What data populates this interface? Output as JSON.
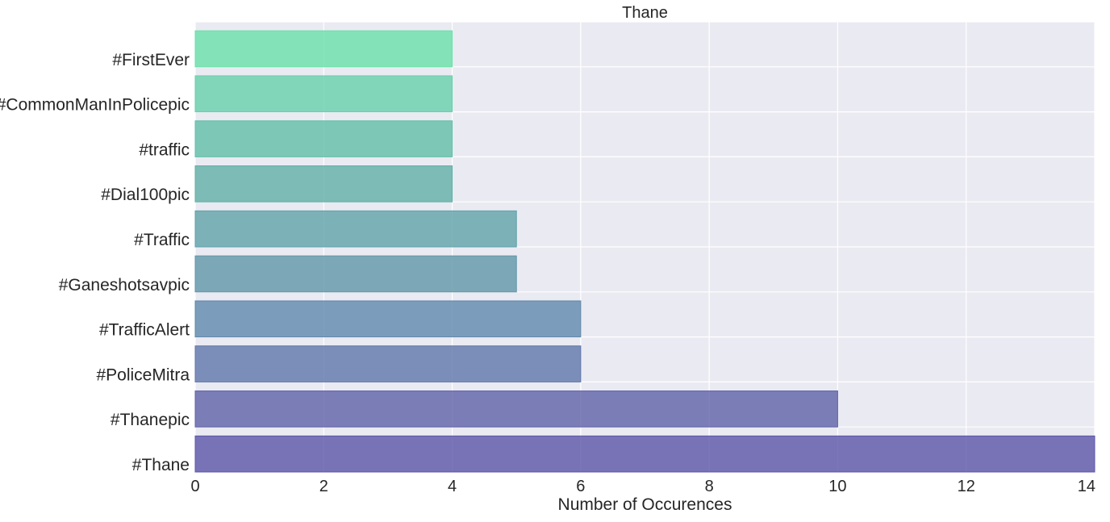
{
  "chart_data": {
    "type": "bar",
    "orientation": "horizontal",
    "title": "Thane",
    "xlabel": "Number of Occurences",
    "ylabel": "",
    "categories": [
      "#Thane",
      "#Thanepic",
      "#PoliceMitra",
      "#TrafficAlert",
      "#Ganeshotsavpic",
      "#Traffic",
      "#Dial100pic",
      "#traffic",
      "#CommonManInPolicepic",
      "#FirstEver"
    ],
    "values": [
      14,
      10,
      6,
      6,
      5,
      5,
      4,
      4,
      4,
      4
    ],
    "xlim": [
      0,
      14
    ],
    "xticks": [
      0,
      2,
      4,
      6,
      8,
      10,
      12,
      14
    ],
    "grid": true,
    "colors": {
      "plot_background": "#eaeaf2",
      "grid": "#ffffff",
      "bars": [
        "#5b55a8",
        "#5f62a8",
        "#5f76aa",
        "#5f88ab",
        "#5f96a8",
        "#5fa2a8",
        "#60afa6",
        "#61bea8",
        "#66cfaa",
        "#69e0a8"
      ]
    }
  }
}
